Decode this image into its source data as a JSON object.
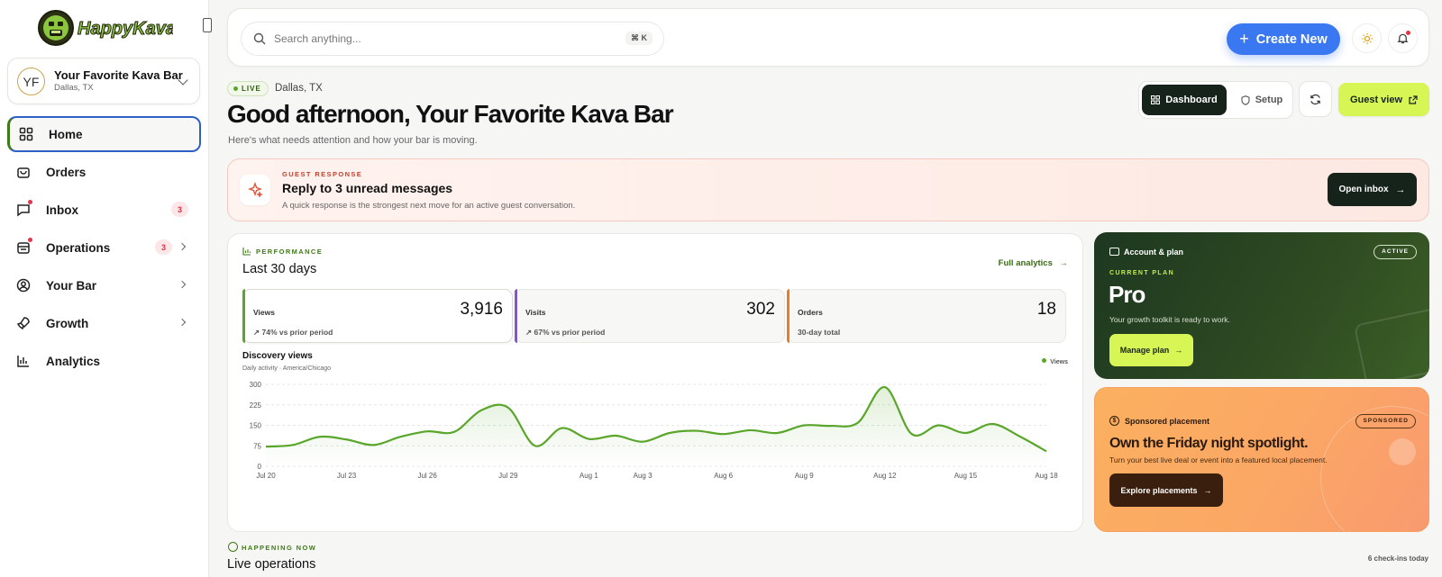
{
  "brand": {
    "logo_text": "HappyKava"
  },
  "bar_selector": {
    "initials": "YF",
    "name": "Your Favorite Kava Bar",
    "location": "Dallas, TX"
  },
  "nav": {
    "items": [
      {
        "label": "Home",
        "icon": "home-grid-icon"
      },
      {
        "label": "Orders",
        "icon": "shopping-bag-icon"
      },
      {
        "label": "Inbox",
        "icon": "message-icon",
        "badge": "3"
      },
      {
        "label": "Operations",
        "icon": "clipboard-icon",
        "badge": "3"
      },
      {
        "label": "Your Bar",
        "icon": "user-circle-icon"
      },
      {
        "label": "Growth",
        "icon": "rocket-icon"
      },
      {
        "label": "Analytics",
        "icon": "bar-chart-icon"
      }
    ]
  },
  "topbar": {
    "search_placeholder": "Search anything...",
    "shortcut": "⌘ K",
    "create_label": "Create New"
  },
  "header": {
    "live_label": "LIVE",
    "location": "Dallas, TX",
    "greeting": "Good afternoon, Your Favorite Kava Bar",
    "subtitle": "Here's what needs attention and how your bar is moving.",
    "tab_dashboard": "Dashboard",
    "tab_setup": "Setup",
    "guest_view": "Guest view"
  },
  "alert": {
    "eyebrow": "GUEST RESPONSE",
    "title": "Reply to 3 unread messages",
    "description": "A quick response is the strongest next move for an active guest conversation.",
    "button": "Open inbox"
  },
  "performance": {
    "eyebrow": "PERFORMANCE",
    "title": "Last 30 days",
    "full_link": "Full analytics",
    "stats": [
      {
        "label": "Views",
        "value": "3,916",
        "sub": "74% vs prior period",
        "color": "#59a62b"
      },
      {
        "label": "Visits",
        "value": "302",
        "sub": "67% vs prior period",
        "color": "#8b4fe0"
      },
      {
        "label": "Orders",
        "value": "18",
        "sub": "30-day total",
        "color": "#f07a1e"
      }
    ],
    "chart_title": "Discovery views",
    "chart_sub": "Daily activity · America/Chicago",
    "legend": "Views"
  },
  "chart_data": {
    "type": "area",
    "x": [
      "Jul 20",
      "Jul 21",
      "Jul 22",
      "Jul 23",
      "Jul 24",
      "Jul 25",
      "Jul 26",
      "Jul 27",
      "Jul 28",
      "Jul 29",
      "Jul 30",
      "Jul 31",
      "Aug 1",
      "Aug 2",
      "Aug 3",
      "Aug 4",
      "Aug 5",
      "Aug 6",
      "Aug 7",
      "Aug 8",
      "Aug 9",
      "Aug 10",
      "Aug 11",
      "Aug 12",
      "Aug 13",
      "Aug 14",
      "Aug 15",
      "Aug 16",
      "Aug 17",
      "Aug 18"
    ],
    "series": [
      {
        "name": "Views",
        "values": [
          72,
          78,
          108,
          98,
          78,
          108,
          128,
          126,
          205,
          215,
          75,
          140,
          100,
          112,
          90,
          122,
          130,
          118,
          132,
          122,
          150,
          148,
          160,
          290,
          118,
          150,
          122,
          155,
          110,
          55
        ]
      }
    ],
    "x_ticks": [
      "Jul 20",
      "Jul 23",
      "Jul 26",
      "Jul 29",
      "Aug 1",
      "Aug 3",
      "Aug 6",
      "Aug 9",
      "Aug 12",
      "Aug 15",
      "Aug 18"
    ],
    "y_ticks": [
      "0",
      "75",
      "150",
      "225",
      "300"
    ],
    "ylim": [
      0,
      300
    ],
    "grid": true,
    "legend_position": "top-right",
    "color": "#59a62b"
  },
  "plan": {
    "heading": "Account & plan",
    "status": "ACTIVE",
    "eyebrow": "CURRENT PLAN",
    "name": "Pro",
    "description": "Your growth toolkit is ready to work.",
    "button": "Manage plan"
  },
  "sponsored": {
    "heading": "Sponsored placement",
    "pill": "SPONSORED",
    "title": "Own the Friday night spotlight.",
    "description": "Turn your best live deal or event into a featured local placement.",
    "button": "Explore placements"
  },
  "live_ops": {
    "eyebrow": "HAPPENING NOW",
    "title": "Live operations",
    "checkins": "6 check-ins today"
  }
}
